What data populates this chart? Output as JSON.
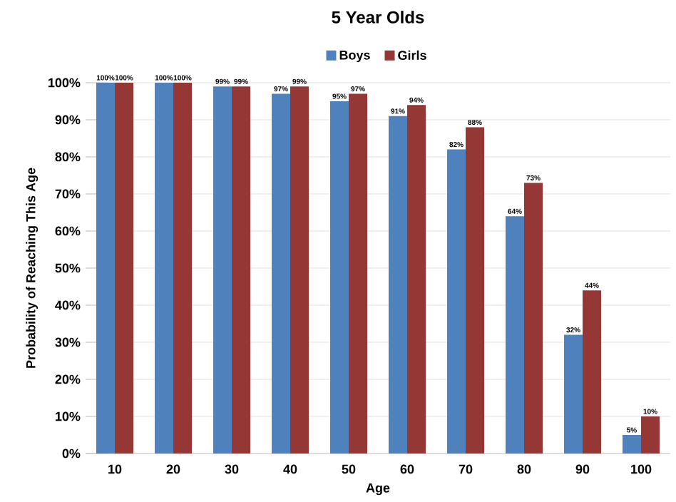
{
  "chart_data": {
    "type": "bar",
    "title": "5 Year Olds",
    "xlabel": "Age",
    "ylabel": "Probability of Reaching This Age",
    "categories": [
      "10",
      "20",
      "30",
      "40",
      "50",
      "60",
      "70",
      "80",
      "90",
      "100"
    ],
    "series": [
      {
        "name": "Boys",
        "color": "#4f81bd",
        "values": [
          100,
          100,
          99,
          97,
          95,
          91,
          82,
          64,
          32,
          5
        ],
        "value_labels": [
          "100%",
          "100%",
          "99%",
          "97%",
          "95%",
          "91%",
          "82%",
          "64%",
          "32%",
          "5%"
        ]
      },
      {
        "name": "Girls",
        "color": "#953735",
        "values": [
          100,
          100,
          99,
          99,
          97,
          94,
          88,
          73,
          44,
          10
        ],
        "value_labels": [
          "100%",
          "100%",
          "99%",
          "99%",
          "97%",
          "94%",
          "88%",
          "73%",
          "44%",
          "10%"
        ]
      }
    ],
    "ylim": [
      0,
      100
    ],
    "yticks": [
      {
        "value": 0,
        "label": "0%"
      },
      {
        "value": 10,
        "label": "10%"
      },
      {
        "value": 20,
        "label": "20%"
      },
      {
        "value": 30,
        "label": "30%"
      },
      {
        "value": 40,
        "label": "40%"
      },
      {
        "value": 50,
        "label": "50%"
      },
      {
        "value": 60,
        "label": "60%"
      },
      {
        "value": 70,
        "label": "70%"
      },
      {
        "value": 80,
        "label": "80%"
      },
      {
        "value": 90,
        "label": "90%"
      },
      {
        "value": 100,
        "label": "100%"
      }
    ],
    "grid": "y",
    "legend": "top"
  }
}
